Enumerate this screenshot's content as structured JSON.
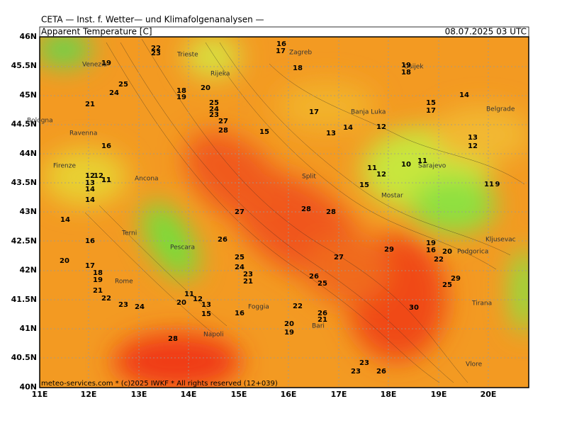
{
  "header": {
    "line1": "CETA — Inst. f. Wetter— und Klimafolgenanalysen —",
    "title": "Apparent Temperature [C]",
    "date": "08.07.2025 03 UTC"
  },
  "map": {
    "xticks": [
      "11E",
      "12E",
      "13E",
      "14E",
      "15E",
      "16E",
      "17E",
      "18E",
      "19E",
      "20E"
    ],
    "yticks": [
      "46N",
      "45.5N",
      "45N",
      "44.5N",
      "44N",
      "43.5N",
      "43N",
      "42.5N",
      "42N",
      "41.5N",
      "41N",
      "40.5N",
      "40N"
    ],
    "cities": [
      "Venezia",
      "Trieste",
      "Rijeka",
      "Zagreb",
      "Osijek",
      "Bologna",
      "Ravenna",
      "Banja Luka",
      "Belgrade",
      "Firenze",
      "Ancona",
      "Split",
      "Sarajevo",
      "Mostar",
      "Terni",
      "Pescara",
      "Podgorica",
      "Kljusevac",
      "Rome",
      "Foggia",
      "Bari",
      "Napoli",
      "Tirana",
      "Vlore"
    ],
    "contour_labels": [
      "16",
      "22",
      "23",
      "19",
      "19",
      "18",
      "18",
      "25",
      "24",
      "21",
      "18",
      "19",
      "20",
      "24",
      "23",
      "25",
      "27",
      "28",
      "15",
      "17",
      "13",
      "14",
      "12",
      "16",
      "15",
      "17",
      "14",
      "13",
      "12",
      "11",
      "11",
      "12",
      "10",
      "11",
      "14",
      "12",
      "13",
      "14",
      "15",
      "14",
      "11",
      "9",
      "16",
      "27",
      "28",
      "28",
      "26",
      "29",
      "16",
      "20",
      "19",
      "22",
      "20",
      "17",
      "18",
      "19",
      "21",
      "22",
      "23",
      "24",
      "20",
      "11",
      "12",
      "13",
      "15",
      "25",
      "24",
      "23",
      "21",
      "26",
      "25",
      "27",
      "16",
      "22",
      "26",
      "21",
      "20",
      "19",
      "30",
      "25",
      "29",
      "23",
      "23",
      "26",
      "28",
      "12",
      "11",
      "17"
    ],
    "footer": "meteo-services.com * (c)2025 IWKF * All rights reserved (12+039)"
  }
}
